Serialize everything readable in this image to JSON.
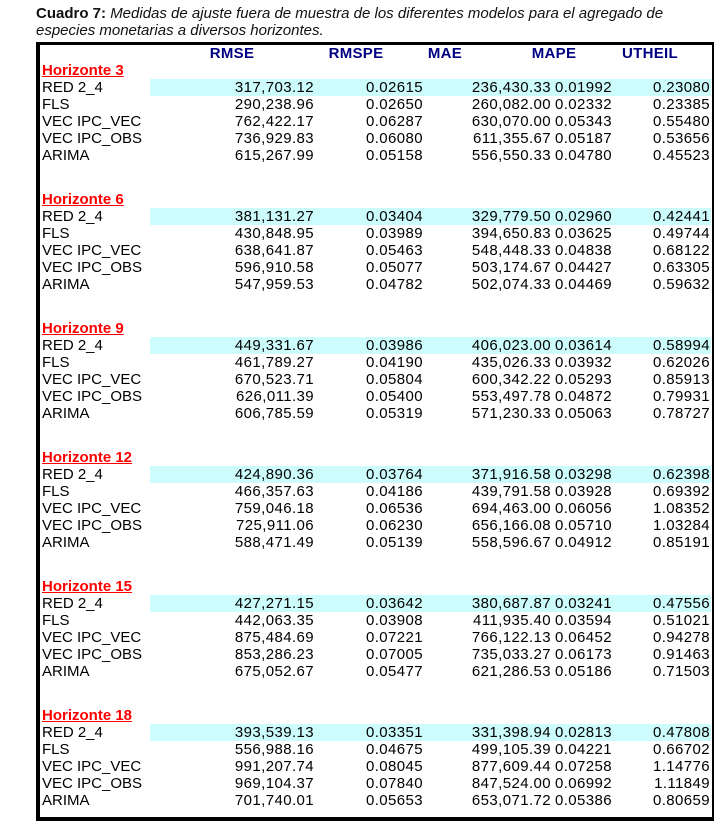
{
  "caption": {
    "label": "Cuadro 7:",
    "text": "Medidas de ajuste fuera de muestra de los diferentes modelos para el agregado de especies monetarias a diversos horizontes."
  },
  "table": {
    "columns": [
      "RMSE",
      "RMSPE",
      "MAE",
      "MAPE",
      "UTHEIL"
    ],
    "colors": {
      "header_text": "#000080",
      "horizon_text": "#FF0000",
      "highlight_bg": "#CCFCFC"
    },
    "sections": [
      {
        "horizon": "Horizonte 3",
        "rows": [
          {
            "model": "RED 2_4",
            "highlight": true,
            "values": [
              "317,703.12",
              "0.02615",
              "236,430.33",
              "0.01992",
              "0.23080"
            ]
          },
          {
            "model": "FLS",
            "highlight": false,
            "values": [
              "290,238.96",
              "0.02650",
              "260,082.00",
              "0.02332",
              "0.23385"
            ]
          },
          {
            "model": "VEC IPC_VEC",
            "highlight": false,
            "values": [
              "762,422.17",
              "0.06287",
              "630,070.00",
              "0.05343",
              "0.55480"
            ]
          },
          {
            "model": "VEC IPC_OBS",
            "highlight": false,
            "values": [
              "736,929.83",
              "0.06080",
              "611,355.67",
              "0.05187",
              "0.53656"
            ]
          },
          {
            "model": "ARIMA",
            "highlight": false,
            "values": [
              "615,267.99",
              "0.05158",
              "556,550.33",
              "0.04780",
              "0.45523"
            ]
          }
        ]
      },
      {
        "horizon": "Horizonte 6",
        "rows": [
          {
            "model": "RED 2_4",
            "highlight": true,
            "values": [
              "381,131.27",
              "0.03404",
              "329,779.50",
              "0.02960",
              "0.42441"
            ]
          },
          {
            "model": "FLS",
            "highlight": false,
            "values": [
              "430,848.95",
              "0.03989",
              "394,650.83",
              "0.03625",
              "0.49744"
            ]
          },
          {
            "model": "VEC IPC_VEC",
            "highlight": false,
            "values": [
              "638,641.87",
              "0.05463",
              "548,448.33",
              "0.04838",
              "0.68122"
            ]
          },
          {
            "model": "VEC IPC_OBS",
            "highlight": false,
            "values": [
              "596,910.58",
              "0.05077",
              "503,174.67",
              "0.04427",
              "0.63305"
            ]
          },
          {
            "model": "ARIMA",
            "highlight": false,
            "values": [
              "547,959.53",
              "0.04782",
              "502,074.33",
              "0.04469",
              "0.59632"
            ]
          }
        ]
      },
      {
        "horizon": "Horizonte 9",
        "rows": [
          {
            "model": "RED 2_4",
            "highlight": true,
            "values": [
              "449,331.67",
              "0.03986",
              "406,023.00",
              "0.03614",
              "0.58994"
            ]
          },
          {
            "model": "FLS",
            "highlight": false,
            "values": [
              "461,789.27",
              "0.04190",
              "435,026.33",
              "0.03932",
              "0.62026"
            ]
          },
          {
            "model": "VEC IPC_VEC",
            "highlight": false,
            "values": [
              "670,523.71",
              "0.05804",
              "600,342.22",
              "0.05293",
              "0.85913"
            ]
          },
          {
            "model": "VEC IPC_OBS",
            "highlight": false,
            "values": [
              "626,011.39",
              "0.05400",
              "553,497.78",
              "0.04872",
              "0.79931"
            ]
          },
          {
            "model": "ARIMA",
            "highlight": false,
            "values": [
              "606,785.59",
              "0.05319",
              "571,230.33",
              "0.05063",
              "0.78727"
            ]
          }
        ]
      },
      {
        "horizon": "Horizonte 12",
        "rows": [
          {
            "model": "RED 2_4",
            "highlight": true,
            "values": [
              "424,890.36",
              "0.03764",
              "371,916.58",
              "0.03298",
              "0.62398"
            ]
          },
          {
            "model": "FLS",
            "highlight": false,
            "values": [
              "466,357.63",
              "0.04186",
              "439,791.58",
              "0.03928",
              "0.69392"
            ]
          },
          {
            "model": "VEC IPC_VEC",
            "highlight": false,
            "values": [
              "759,046.18",
              "0.06536",
              "694,463.00",
              "0.06056",
              "1.08352"
            ]
          },
          {
            "model": "VEC IPC_OBS",
            "highlight": false,
            "values": [
              "725,911.06",
              "0.06230",
              "656,166.08",
              "0.05710",
              "1.03284"
            ]
          },
          {
            "model": "ARIMA",
            "highlight": false,
            "values": [
              "588,471.49",
              "0.05139",
              "558,596.67",
              "0.04912",
              "0.85191"
            ]
          }
        ]
      },
      {
        "horizon": "Horizonte 15",
        "rows": [
          {
            "model": "RED 2_4",
            "highlight": true,
            "values": [
              "427,271.15",
              "0.03642",
              "380,687.87",
              "0.03241",
              "0.47556"
            ]
          },
          {
            "model": "FLS",
            "highlight": false,
            "values": [
              "442,063.35",
              "0.03908",
              "411,935.40",
              "0.03594",
              "0.51021"
            ]
          },
          {
            "model": "VEC IPC_VEC",
            "highlight": false,
            "values": [
              "875,484.69",
              "0.07221",
              "766,122.13",
              "0.06452",
              "0.94278"
            ]
          },
          {
            "model": "VEC IPC_OBS",
            "highlight": false,
            "values": [
              "853,286.23",
              "0.07005",
              "735,033.27",
              "0.06173",
              "0.91463"
            ]
          },
          {
            "model": "ARIMA",
            "highlight": false,
            "values": [
              "675,052.67",
              "0.05477",
              "621,286.53",
              "0.05186",
              "0.71503"
            ]
          }
        ]
      },
      {
        "horizon": "Horizonte 18",
        "rows": [
          {
            "model": "RED 2_4",
            "highlight": true,
            "values": [
              "393,539.13",
              "0.03351",
              "331,398.94",
              "0.02813",
              "0.47808"
            ]
          },
          {
            "model": "FLS",
            "highlight": false,
            "values": [
              "556,988.16",
              "0.04675",
              "499,105.39",
              "0.04221",
              "0.66702"
            ]
          },
          {
            "model": "VEC IPC_VEC",
            "highlight": false,
            "values": [
              "991,207.74",
              "0.08045",
              "877,609.44",
              "0.07258",
              "1.14776"
            ]
          },
          {
            "model": "VEC IPC_OBS",
            "highlight": false,
            "values": [
              "969,104.37",
              "0.07840",
              "847,524.00",
              "0.06992",
              "1.11849"
            ]
          },
          {
            "model": "ARIMA",
            "highlight": false,
            "values": [
              "701,740.01",
              "0.05653",
              "653,071.72",
              "0.05386",
              "0.80659"
            ]
          }
        ]
      }
    ]
  }
}
